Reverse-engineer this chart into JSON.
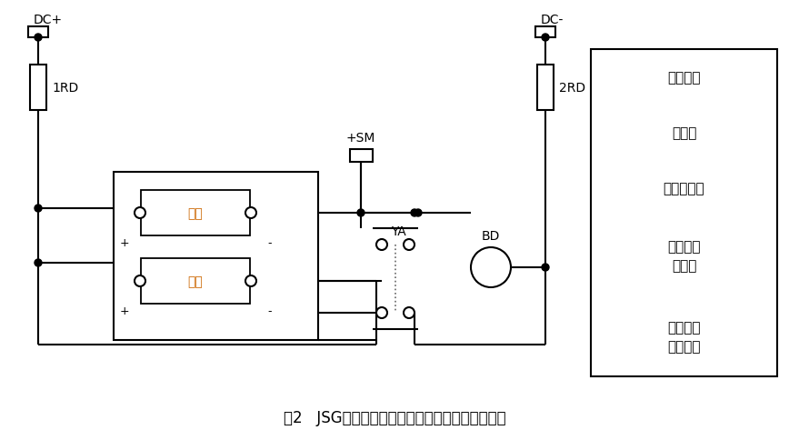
{
  "title": "图2   JSG系列静态闪光继电器应用外部接线参考图",
  "title_fontsize": 12,
  "bg_color": "#ffffff",
  "line_color": "#000000",
  "label_color": "#cc6600",
  "fig_width": 8.68,
  "fig_height": 4.85,
  "dpi": 100,
  "row_labels": [
    "直流母线",
    "熔断器",
    "闪光小母线",
    "静态闪光\n断电器",
    "试验按钮\n及信号灯"
  ],
  "row_heights": [
    1.1,
    1.1,
    1.1,
    1.6,
    1.6
  ],
  "dc_plus": "DC+",
  "dc_minus": "DC-",
  "fuse1": "1RD",
  "fuse2": "2RD",
  "sm_label": "+SM",
  "ya_label": "YA",
  "bd_label": "BD",
  "box_label1": "启动",
  "box_label2": "电源"
}
